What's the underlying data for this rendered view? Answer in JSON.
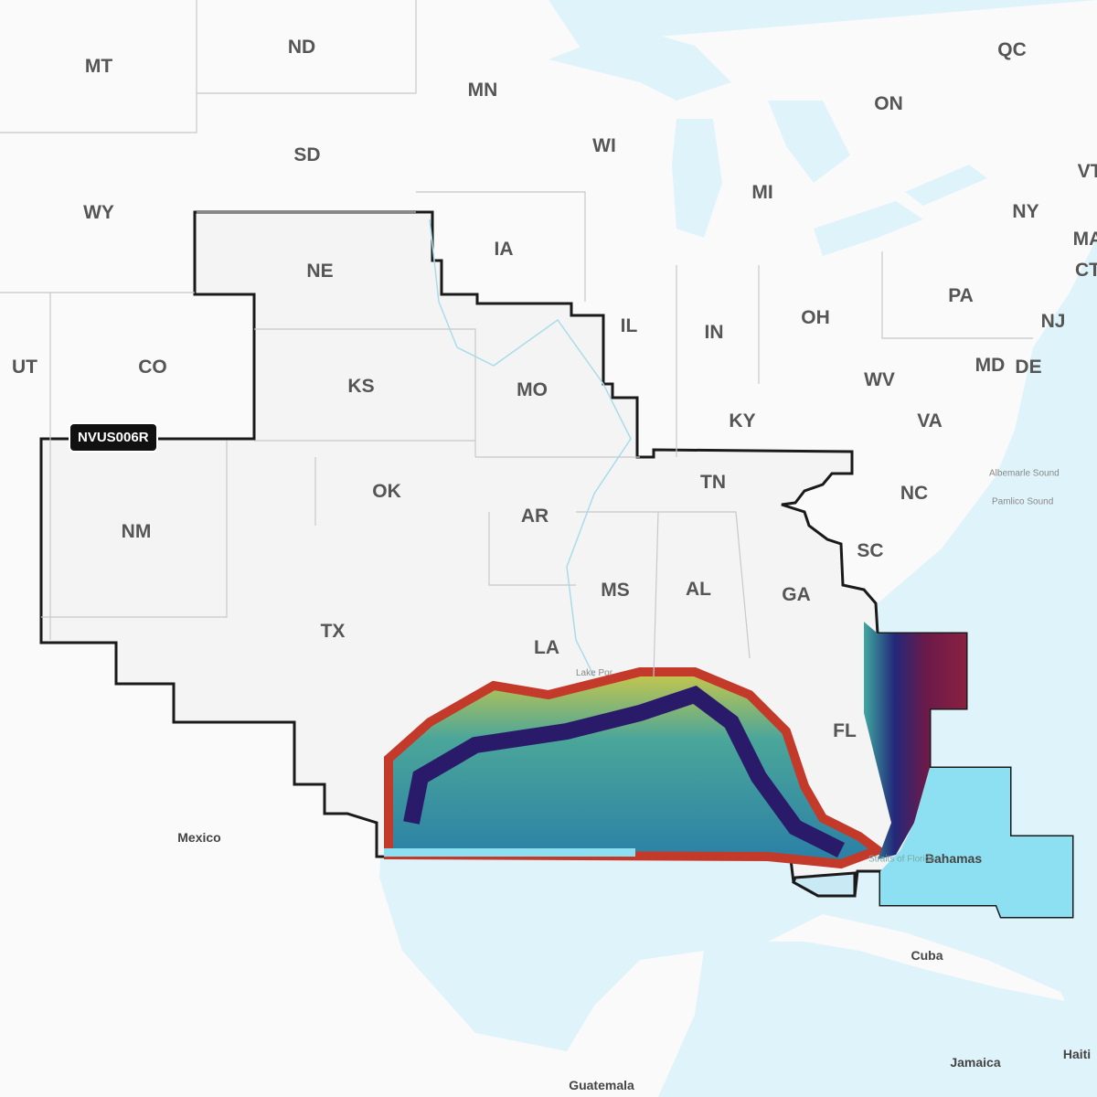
{
  "product_tag": "NVUS006R",
  "colors": {
    "water": "#dff3fa",
    "land": "#fafafa",
    "coverage": "#f4f4f4",
    "coverage_border": "#1a1a1a",
    "bahamas_water": "#8de0f2"
  },
  "labels": {
    "states": [
      "MT",
      "ND",
      "MN",
      "WI",
      "MI",
      "ON",
      "QC",
      "WY",
      "SD",
      "NE",
      "IA",
      "IL",
      "IN",
      "OH",
      "PA",
      "NY",
      "VT",
      "MA",
      "CT",
      "NJ",
      "UT",
      "CO",
      "KS",
      "MO",
      "KY",
      "WV",
      "VA",
      "MD",
      "DE",
      "NM",
      "OK",
      "AR",
      "TN",
      "NC",
      "SC",
      "TX",
      "MS",
      "AL",
      "GA",
      "LA",
      "FL"
    ],
    "places": [
      "Mexico",
      "Cuba",
      "Bahamas",
      "Guatemala",
      "Jamaica",
      "Haiti"
    ],
    "water": [
      "Albemarle Sound",
      "Pamlico Sound",
      "Lake Pontchartrain",
      "Straits of Florida"
    ]
  }
}
